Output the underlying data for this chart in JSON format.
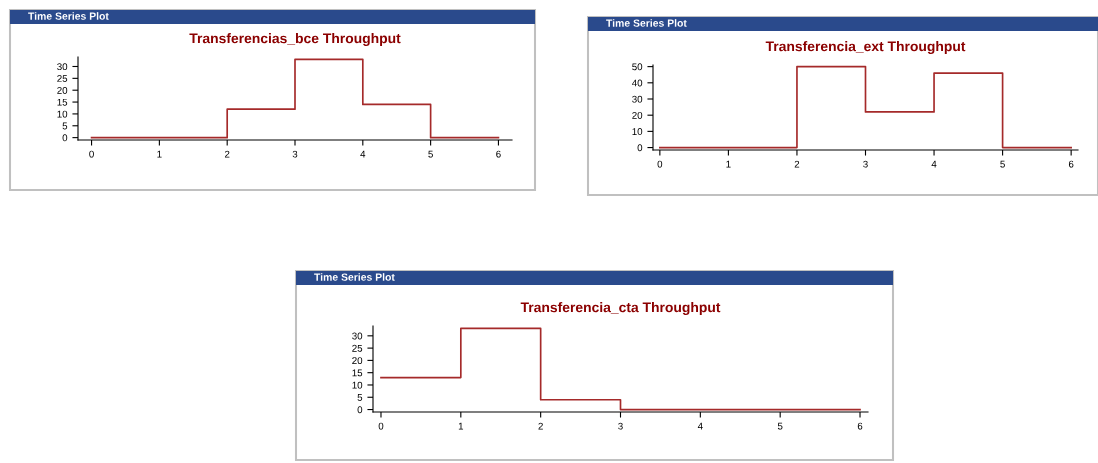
{
  "chart_data": [
    {
      "type": "step",
      "title": "Transferencias_bce Throughput",
      "annotations": [
        "Time Series Plot"
      ],
      "x": [
        0,
        1,
        2,
        3,
        4,
        5,
        6
      ],
      "series": [
        {
          "color": "#a52a2a",
          "values": [
            0,
            0,
            12,
            33,
            14,
            0,
            0
          ]
        }
      ],
      "xlim": [
        -0.2,
        6.2
      ],
      "xticks": [
        0,
        1,
        2,
        3,
        4,
        5,
        6
      ],
      "ylim": [
        -1,
        34
      ],
      "yticks": [
        0,
        5,
        10,
        15,
        20,
        25,
        30
      ],
      "grid": false,
      "legend": false
    },
    {
      "type": "step",
      "title": "Transferencia_ext Throughput",
      "annotations": [
        "Time Series Plot"
      ],
      "x": [
        0,
        1,
        2,
        3,
        4,
        5,
        6
      ],
      "series": [
        {
          "color": "#a52a2a",
          "values": [
            0,
            0,
            50,
            22,
            46,
            0,
            0
          ]
        }
      ],
      "xlim": [
        -0.1,
        6.1
      ],
      "xticks": [
        0,
        1,
        2,
        3,
        4,
        5,
        6
      ],
      "ylim": [
        -1.5,
        51
      ],
      "yticks": [
        0,
        10,
        20,
        30,
        40,
        50
      ],
      "grid": false,
      "legend": false
    },
    {
      "type": "step",
      "title": "Transferencia_cta Throughput",
      "annotations": [
        "Time Series Plot"
      ],
      "x": [
        0,
        1,
        2,
        3,
        4,
        5,
        6
      ],
      "series": [
        {
          "color": "#a52a2a",
          "values": [
            13,
            33,
            4,
            0,
            0,
            0,
            0
          ]
        }
      ],
      "xlim": [
        -0.1,
        6.1
      ],
      "xticks": [
        0,
        1,
        2,
        3,
        4,
        5,
        6
      ],
      "ylim": [
        -1,
        34
      ],
      "yticks": [
        0,
        5,
        10,
        15,
        20,
        25,
        30
      ],
      "grid": false,
      "legend": false
    }
  ]
}
